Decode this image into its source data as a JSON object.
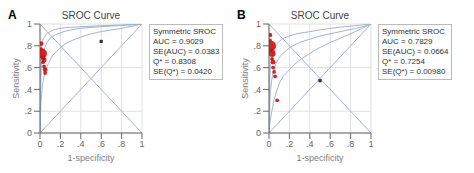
{
  "chart_data": [
    {
      "type": "line",
      "title": "SROC Curve",
      "panel_label": "A",
      "xlabel": "1-specificity",
      "ylabel": "Sensitivity",
      "annotation": "Symmetric SROC\nAUC = 0.9029\nSE(AUC) = 0.0383\nQ* = 0.8308\nSE(Q*) = 0.0420",
      "xlim": [
        0,
        1
      ],
      "ylim": [
        0,
        1
      ],
      "xticks": [
        0,
        {
          "value": 0.2,
          "label": ".2"
        },
        {
          "value": 0.4,
          "label": ".4"
        },
        {
          "value": 0.6,
          "label": ".6"
        },
        {
          "value": 0.8,
          "label": ".8"
        },
        1
      ],
      "yticks": [
        0,
        {
          "value": 0.2,
          "label": ".2"
        },
        {
          "value": 0.4,
          "label": ".4"
        },
        {
          "value": 0.6,
          "label": ".6"
        },
        {
          "value": 0.8,
          "label": ".8"
        },
        1
      ],
      "grid": true,
      "series": [
        {
          "color": "#a0b4d0",
          "x": [
            0,
            1
          ],
          "values": [
            0,
            1
          ]
        },
        {
          "color": "#a0b4d0",
          "x": [
            0,
            1
          ],
          "values": [
            1,
            0
          ]
        },
        {
          "color": "#a0b4d0",
          "x": [
            0.0,
            0.01,
            0.02,
            0.05,
            0.1,
            0.2,
            0.4,
            0.6,
            0.8,
            1.0
          ],
          "values": [
            0.0,
            0.72,
            0.82,
            0.89,
            0.93,
            0.96,
            0.975,
            0.984,
            0.991,
            1.0
          ]
        },
        {
          "color": "#a0b4d0",
          "x": [
            0.0,
            0.01,
            0.02,
            0.05,
            0.1,
            0.2,
            0.4,
            0.6,
            0.8,
            1.0
          ],
          "values": [
            0.0,
            0.28,
            0.4,
            0.55,
            0.67,
            0.78,
            0.88,
            0.93,
            0.96,
            1.0
          ]
        },
        {
          "color": "#a0b4d0",
          "x": [
            0.0,
            0.01,
            0.02,
            0.04,
            0.07,
            0.1,
            0.15,
            0.2,
            0.3,
            0.4,
            0.5,
            0.6,
            0.7,
            0.8,
            0.9,
            1.0
          ],
          "values": [
            0.0,
            0.55,
            0.67,
            0.76,
            0.83,
            0.87,
            0.9,
            0.92,
            0.945,
            0.96,
            0.968,
            0.975,
            0.981,
            0.986,
            0.991,
            1.0
          ]
        },
        {
          "type": "scatter",
          "marker": "square",
          "color": "#333333",
          "x": [
            0.6
          ],
          "values": [
            0.84
          ]
        },
        {
          "type": "scatter",
          "marker": "circle",
          "color": "#cc1111",
          "x": [
            0.01,
            0.01,
            0.02,
            0.03,
            0.03,
            0.04,
            0.04,
            0.05,
            0.05
          ],
          "values": [
            0.82,
            0.77,
            0.73,
            0.69,
            0.65,
            0.67,
            0.61,
            0.58,
            0.55
          ],
          "sizes": [
            30,
            18,
            120,
            30,
            18,
            30,
            18,
            30,
            18
          ]
        }
      ]
    },
    {
      "type": "line",
      "title": "SROC Curve",
      "panel_label": "B",
      "xlabel": "1-specificity",
      "ylabel": "Sensitivity",
      "annotation": "Symmetric SROC\nAUC = 0.7829\nSE(AUC) = 0.0664\nQ* = 0.7254\nSE(Q*) = 0.00980",
      "xlim": [
        0,
        1
      ],
      "ylim": [
        0,
        1
      ],
      "xticks": [
        0,
        {
          "value": 0.2,
          "label": ".2"
        },
        {
          "value": 0.4,
          "label": ".4"
        },
        {
          "value": 0.6,
          "label": ".6"
        },
        {
          "value": 0.8,
          "label": ".8"
        },
        1
      ],
      "yticks": [
        0,
        {
          "value": 0.2,
          "label": ".2"
        },
        {
          "value": 0.4,
          "label": ".4"
        },
        {
          "value": 0.6,
          "label": ".6"
        },
        {
          "value": 0.8,
          "label": ".8"
        },
        1
      ],
      "grid": true,
      "series": [
        {
          "color": "#a0b4d0",
          "x": [
            0,
            1
          ],
          "values": [
            0,
            1
          ]
        },
        {
          "color": "#a0b4d0",
          "x": [
            0,
            1
          ],
          "values": [
            1,
            0
          ]
        },
        {
          "color": "#a0b4d0",
          "x": [
            0.0,
            0.01,
            0.02,
            0.05,
            0.1,
            0.2,
            0.4,
            0.6,
            0.8,
            1.0
          ],
          "values": [
            0.0,
            0.55,
            0.65,
            0.76,
            0.84,
            0.89,
            0.93,
            0.96,
            0.98,
            1.0
          ]
        },
        {
          "color": "#a0b4d0",
          "x": [
            0.0,
            0.01,
            0.02,
            0.05,
            0.1,
            0.2,
            0.4,
            0.6,
            0.8,
            1.0
          ],
          "values": [
            0.0,
            0.1,
            0.16,
            0.3,
            0.45,
            0.58,
            0.73,
            0.83,
            0.91,
            1.0
          ]
        },
        {
          "color": "#a0b4d0",
          "x": [
            0.0,
            0.01,
            0.02,
            0.05,
            0.1,
            0.15,
            0.2,
            0.3,
            0.4,
            0.5,
            0.6,
            0.7,
            0.8,
            0.9,
            1.0
          ],
          "values": [
            0.0,
            0.32,
            0.43,
            0.58,
            0.69,
            0.74,
            0.78,
            0.83,
            0.86,
            0.89,
            0.91,
            0.93,
            0.95,
            0.97,
            1.0
          ]
        },
        {
          "type": "scatter",
          "marker": "square",
          "color": "#333333",
          "x": [
            0.5
          ],
          "values": [
            0.48
          ]
        },
        {
          "type": "scatter",
          "marker": "circle",
          "color": "#cc1111",
          "x": [
            0.01,
            0.01,
            0.02,
            0.02,
            0.03,
            0.03,
            0.04,
            0.04,
            0.05,
            0.06,
            0.08
          ],
          "values": [
            0.9,
            0.85,
            0.8,
            0.76,
            0.73,
            0.68,
            0.65,
            0.6,
            0.56,
            0.52,
            0.3
          ],
          "sizes": [
            25,
            18,
            120,
            18,
            60,
            18,
            30,
            18,
            18,
            18,
            18
          ]
        }
      ]
    }
  ]
}
